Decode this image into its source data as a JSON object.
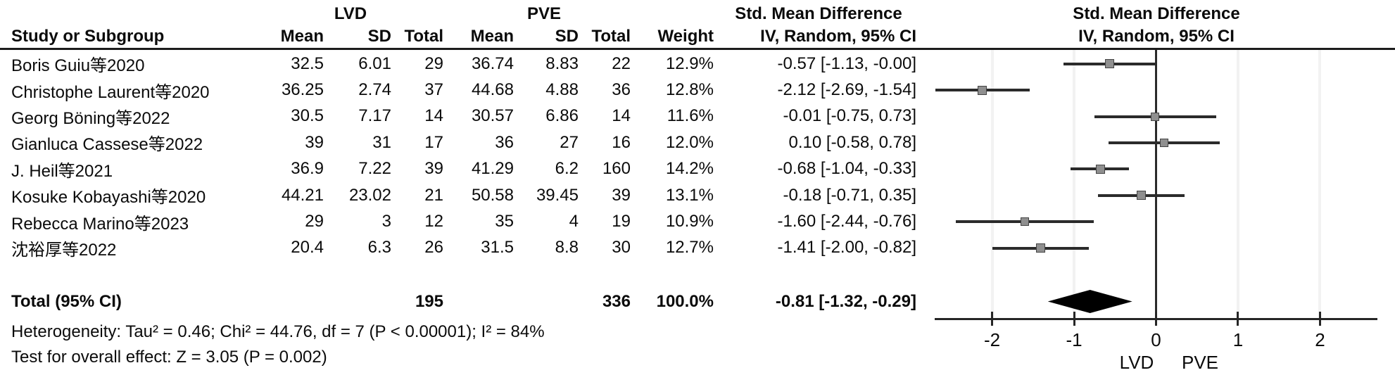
{
  "chart_data": {
    "type": "forest",
    "title_left_group": "LVD",
    "title_right_group": "PVE",
    "smd_header": "Std. Mean Difference",
    "method_header": "IV, Random, 95% CI",
    "columns": [
      "Study or Subgroup",
      "Mean",
      "SD",
      "Total",
      "Mean",
      "SD",
      "Total",
      "Weight",
      "IV, Random, 95% CI"
    ],
    "studies": [
      {
        "name": "Boris Guiu等2020",
        "lvd": {
          "mean": "32.5",
          "sd": "6.01",
          "total": "29"
        },
        "pve": {
          "mean": "36.74",
          "sd": "8.83",
          "total": "22"
        },
        "weight": "12.9%",
        "weight_num": 12.9,
        "smd_text": "-0.57 [-1.13, -0.00]",
        "est": -0.57,
        "lo": -1.13,
        "hi": 0.0
      },
      {
        "name": "Christophe Laurent等2020",
        "lvd": {
          "mean": "36.25",
          "sd": "2.74",
          "total": "37"
        },
        "pve": {
          "mean": "44.68",
          "sd": "4.88",
          "total": "36"
        },
        "weight": "12.8%",
        "weight_num": 12.8,
        "smd_text": "-2.12 [-2.69, -1.54]",
        "est": -2.12,
        "lo": -2.69,
        "hi": -1.54
      },
      {
        "name": "Georg Böning等2022",
        "lvd": {
          "mean": "30.5",
          "sd": "7.17",
          "total": "14"
        },
        "pve": {
          "mean": "30.57",
          "sd": "6.86",
          "total": "14"
        },
        "weight": "11.6%",
        "weight_num": 11.6,
        "smd_text": "-0.01 [-0.75, 0.73]",
        "est": -0.01,
        "lo": -0.75,
        "hi": 0.73
      },
      {
        "name": "Gianluca Cassese等2022",
        "lvd": {
          "mean": "39",
          "sd": "31",
          "total": "17"
        },
        "pve": {
          "mean": "36",
          "sd": "27",
          "total": "16"
        },
        "weight": "12.0%",
        "weight_num": 12.0,
        "smd_text": "0.10 [-0.58, 0.78]",
        "est": 0.1,
        "lo": -0.58,
        "hi": 0.78
      },
      {
        "name": "J. Heil等2021",
        "lvd": {
          "mean": "36.9",
          "sd": "7.22",
          "total": "39"
        },
        "pve": {
          "mean": "41.29",
          "sd": "6.2",
          "total": "160"
        },
        "weight": "14.2%",
        "weight_num": 14.2,
        "smd_text": "-0.68 [-1.04, -0.33]",
        "est": -0.68,
        "lo": -1.04,
        "hi": -0.33
      },
      {
        "name": "Kosuke Kobayashi等2020",
        "lvd": {
          "mean": "44.21",
          "sd": "23.02",
          "total": "21"
        },
        "pve": {
          "mean": "50.58",
          "sd": "39.45",
          "total": "39"
        },
        "weight": "13.1%",
        "weight_num": 13.1,
        "smd_text": "-0.18 [-0.71, 0.35]",
        "est": -0.18,
        "lo": -0.71,
        "hi": 0.35
      },
      {
        "name": "Rebecca Marino等2023",
        "lvd": {
          "mean": "29",
          "sd": "3",
          "total": "12"
        },
        "pve": {
          "mean": "35",
          "sd": "4",
          "total": "19"
        },
        "weight": "10.9%",
        "weight_num": 10.9,
        "smd_text": "-1.60 [-2.44, -0.76]",
        "est": -1.6,
        "lo": -2.44,
        "hi": -0.76
      },
      {
        "name": "沈裕厚等2022",
        "lvd": {
          "mean": "20.4",
          "sd": "6.3",
          "total": "26"
        },
        "pve": {
          "mean": "31.5",
          "sd": "8.8",
          "total": "30"
        },
        "weight": "12.7%",
        "weight_num": 12.7,
        "smd_text": "-1.41 [-2.00, -0.82]",
        "est": -1.41,
        "lo": -2.0,
        "hi": -0.82
      }
    ],
    "total": {
      "label": "Total (95% CI)",
      "lvd_total": "195",
      "pve_total": "336",
      "weight": "100.0%",
      "smd_text": "-0.81 [-1.32, -0.29]",
      "est": -0.81,
      "lo": -1.32,
      "hi": -0.29
    },
    "heterogeneity": "Heterogeneity: Tau² = 0.46; Chi² = 44.76, df = 7 (P < 0.00001); I² = 84%",
    "overall_effect": "Test for overall effect: Z = 3.05 (P = 0.002)",
    "axis": {
      "ticks": [
        -2,
        -1,
        0,
        1,
        2
      ],
      "range": [
        -2.7,
        2.7
      ],
      "label_left": "LVD",
      "label_right": "PVE"
    }
  },
  "colors": {
    "line": "#2b2b2b",
    "square_fill": "#8f8f8f",
    "square_border": "#444444",
    "diamond": "#000000",
    "gridline": "#f2f2f2",
    "text": "#0b0b0b"
  }
}
